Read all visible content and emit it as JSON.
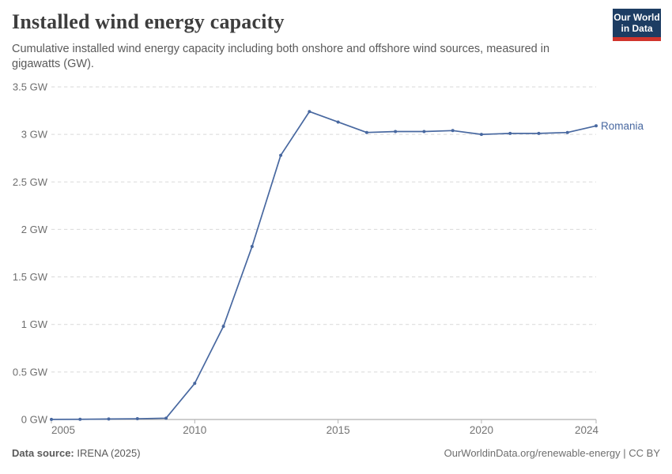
{
  "header": {
    "title": "Installed wind energy capacity",
    "subtitle": "Cumulative installed wind energy capacity including both onshore and offshore wind sources, measured in gigawatts (GW).",
    "logo": {
      "line1": "Our World",
      "line2": "in Data"
    }
  },
  "chart_data": {
    "type": "line",
    "title": "Installed wind energy capacity",
    "entity": "Romania",
    "unit": "GW",
    "x": [
      2005,
      2006,
      2007,
      2008,
      2009,
      2010,
      2011,
      2012,
      2013,
      2014,
      2015,
      2016,
      2017,
      2018,
      2019,
      2020,
      2021,
      2022,
      2023,
      2024
    ],
    "series": [
      {
        "name": "Romania",
        "values": [
          0.001,
          0.002,
          0.005,
          0.008,
          0.014,
          0.38,
          0.98,
          1.82,
          2.78,
          3.24,
          3.13,
          3.02,
          3.03,
          3.03,
          3.04,
          3.0,
          3.01,
          3.01,
          3.02,
          3.09
        ]
      }
    ],
    "x_ticks": [
      2005,
      2010,
      2015,
      2020,
      2024
    ],
    "y_ticks": [
      0,
      0.5,
      1,
      1.5,
      2,
      2.5,
      3,
      3.5
    ],
    "y_tick_suffix": " GW",
    "xlim": [
      2005,
      2024
    ],
    "ylim": [
      0,
      3.5
    ],
    "grid": "horizontal-dashed",
    "legend_position": "line-end-label"
  },
  "colors": {
    "line": "#4868a0",
    "entity_label": "#4868a0",
    "grid": "#d9d9d9",
    "axis": "#9e9e9e",
    "tick": "#b3b3b3",
    "y_label": "#6e6e6e",
    "x_label": "#737373",
    "logo_bg": "#1d3d63",
    "logo_stripe": "#d0342c"
  },
  "footer": {
    "source_label": "Data source:",
    "source": "IRENA (2025)",
    "link": "OurWorldinData.org/renewable-energy",
    "separator": " | ",
    "license": "CC BY"
  }
}
